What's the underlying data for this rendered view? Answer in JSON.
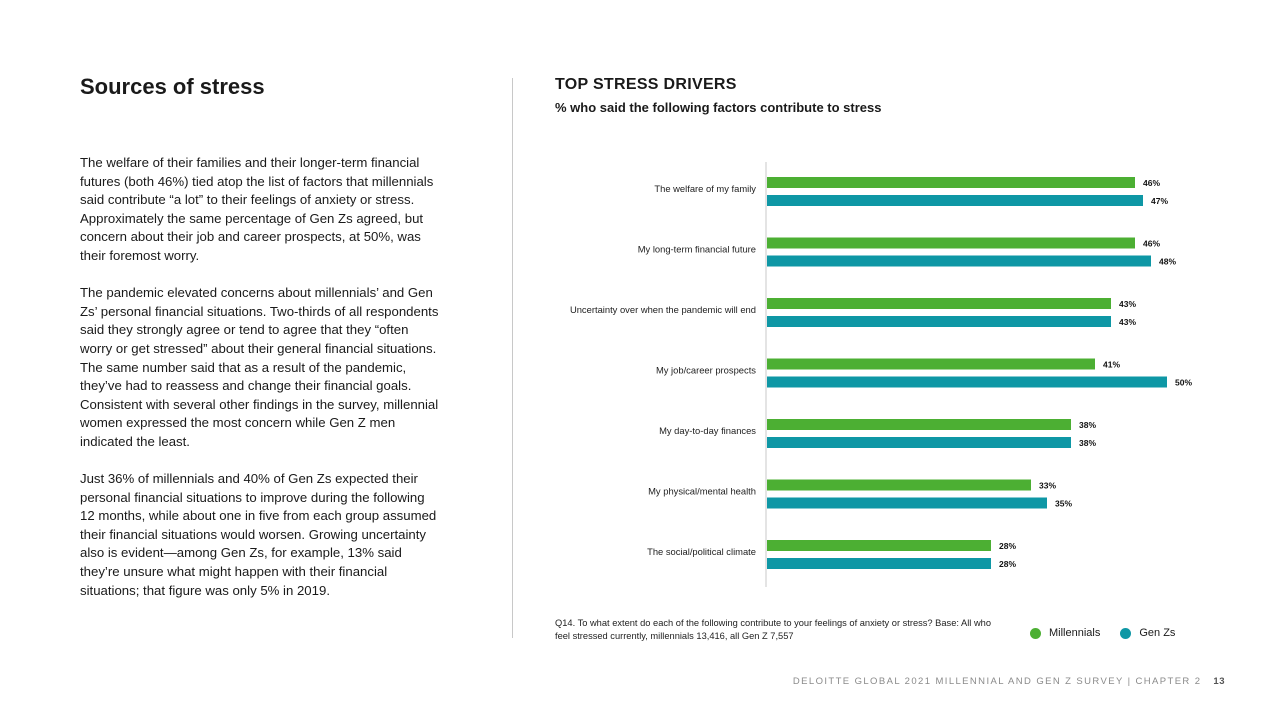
{
  "left": {
    "title": "Sources of stress",
    "paragraphs": [
      "The welfare of their families and their longer-term financial futures (both 46%) tied atop the list of factors that millennials said contribute “a lot” to their feelings of anxiety or stress. Approximately the same percentage of Gen Zs agreed, but concern about their job and career prospects, at 50%, was their foremost worry.",
      "The pandemic elevated concerns about millennials’ and Gen Zs’ personal financial situations. Two-thirds of all respondents said they strongly agree or tend to agree that they “often worry or get stressed” about their general financial situations. The same number said that as a result of the pandemic, they’ve had to reassess and change their financial goals. Consistent with several other findings in the survey, millennial women expressed the most concern while Gen Z men indicated the least.",
      "Just 36% of millennials and 40% of Gen Zs expected their personal financial situations to improve during the following 12 months, while about one in five from each group assumed their financial situations would worsen. Growing uncertainty also is evident—among Gen Zs, for example, 13% said they’re unsure what might happen with their financial situations; that figure was only 5% in 2019."
    ]
  },
  "chart_data": {
    "type": "bar",
    "orientation": "horizontal",
    "title": "TOP STRESS DRIVERS",
    "subtitle": "% who said the following factors contribute to stress",
    "categories": [
      "The welfare of my family",
      "My long-term financial future",
      "Uncertainty over when the pandemic will end",
      "My job/career prospects",
      "My day-to-day finances",
      "My physical/mental health",
      "The social/political climate"
    ],
    "series": [
      {
        "name": "Millennials",
        "color": "#4caf33",
        "values": [
          46,
          46,
          43,
          41,
          38,
          33,
          28
        ]
      },
      {
        "name": "Gen Zs",
        "color": "#0e97a5",
        "values": [
          47,
          48,
          43,
          50,
          38,
          35,
          28
        ]
      }
    ],
    "value_suffix": "%",
    "xlim": [
      0,
      50
    ],
    "grid": false,
    "legend_position": "bottom-right"
  },
  "footnote": "Q14. To what extent do each of the following contribute to your feelings of anxiety or stress? Base: All who feel stressed currently, millennials 13,416, all Gen Z 7,557",
  "footer": {
    "text": "DELOITTE GLOBAL 2021 MILLENNIAL AND GEN Z SURVEY | CHAPTER 2",
    "page": "13"
  }
}
